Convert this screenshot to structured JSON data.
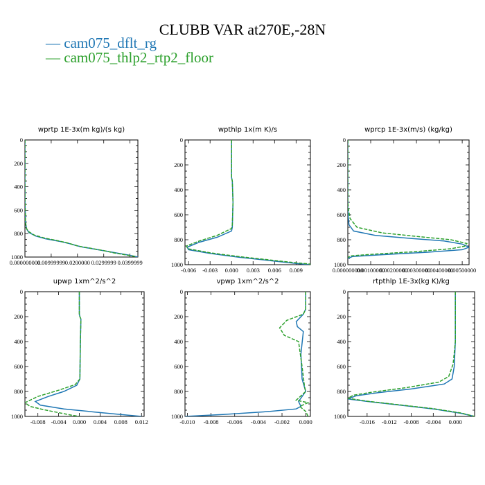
{
  "title": "CLUBB VAR at270E,-28N",
  "legend": [
    {
      "label": "cam075_dflt_rg",
      "color": "#1f77b4"
    },
    {
      "label": "cam075_thlp2_rtp2_floor",
      "color": "#2ca02c"
    }
  ],
  "legend_line_glyph": "—",
  "chart_data": [
    {
      "type": "line",
      "title": "wprtp  1E-3x(m kg)/(s kg)",
      "xlim": [
        0.0,
        0.043
      ],
      "ylim": [
        1000,
        0
      ],
      "grid": false,
      "xticks": [
        0.0,
        0.01,
        0.02,
        0.03,
        0.04
      ],
      "xticklabels": [
        "0.000000000",
        "0.00999999",
        "0.0200000",
        "0.0299999",
        "0.0399999"
      ],
      "yticks": [
        0,
        200,
        400,
        600,
        800,
        1000
      ],
      "yticklabels": [
        "0",
        "200",
        "400",
        "600",
        "800",
        "1000"
      ],
      "series": [
        {
          "name": "cam075_dflt_rg",
          "color": "#1f77b4",
          "dashed": false,
          "x": [
            0.0,
            0.0,
            0.0002,
            0.0006,
            0.0015,
            0.004,
            0.008,
            0.013,
            0.017,
            0.02,
            0.022,
            0.026,
            0.031,
            0.036,
            0.04,
            0.043
          ],
          "y": [
            0,
            500,
            700,
            760,
            790,
            820,
            845,
            865,
            885,
            905,
            915,
            930,
            950,
            970,
            985,
            1000
          ]
        },
        {
          "name": "cam075_thlp2_rtp2_floor",
          "color": "#2ca02c",
          "dashed": true,
          "x": [
            0.0,
            0.0,
            0.0002,
            0.0005,
            0.0012,
            0.0035,
            0.0075,
            0.012,
            0.016,
            0.019,
            0.021,
            0.025,
            0.03,
            0.034,
            0.038,
            0.042
          ],
          "y": [
            0,
            500,
            700,
            750,
            780,
            812,
            838,
            858,
            878,
            898,
            910,
            925,
            945,
            965,
            980,
            995
          ]
        }
      ]
    },
    {
      "type": "line",
      "title": "wpthlp  1x(m K)/s",
      "xlim": [
        -0.0065,
        0.011
      ],
      "ylim": [
        1000,
        0
      ],
      "grid": false,
      "xticks": [
        -0.006,
        -0.003,
        0.0,
        0.003,
        0.006,
        0.009
      ],
      "xticklabels": [
        "-0.006",
        "-0.003",
        "0.000",
        "0.003",
        "0.006",
        "0.009"
      ],
      "yticks": [
        0,
        200,
        400,
        600,
        800,
        1000
      ],
      "yticklabels": [
        "0",
        "200",
        "400",
        "600",
        "800",
        "1000"
      ],
      "series": [
        {
          "name": "cam075_dflt_rg",
          "color": "#1f77b4",
          "dashed": false,
          "x": [
            0.0,
            0.0,
            0.0001,
            0.0002,
            0.0001,
            0.0,
            -0.002,
            -0.0045,
            -0.0062,
            -0.006,
            -0.003,
            0.001,
            0.005,
            0.009,
            0.011
          ],
          "y": [
            0,
            300,
            330,
            500,
            700,
            730,
            780,
            820,
            860,
            880,
            910,
            940,
            965,
            990,
            1000
          ]
        },
        {
          "name": "cam075_thlp2_rtp2_floor",
          "color": "#2ca02c",
          "dashed": true,
          "x": [
            0.0,
            0.0,
            0.0001,
            0.0002,
            0.0001,
            0.0,
            -0.002,
            -0.0045,
            -0.0063,
            -0.0061,
            -0.003,
            0.001,
            0.005,
            0.009,
            0.011
          ],
          "y": [
            0,
            300,
            330,
            500,
            680,
            710,
            765,
            810,
            850,
            872,
            905,
            935,
            960,
            985,
            995
          ]
        }
      ]
    },
    {
      "type": "line",
      "title": "wprcp  1E-3x(m/s) (kg/kg)",
      "xlim": [
        0.0,
        5.3e-06
      ],
      "ylim": [
        1000,
        0
      ],
      "grid": false,
      "xticks": [
        0.0,
        1e-06,
        2e-06,
        3e-06,
        4e-06,
        5e-06
      ],
      "xticklabels": [
        "0.000000000",
        "0.00100000",
        "0.00200000",
        "0.00300000",
        "0.00400000",
        "0.00500000"
      ],
      "yticks": [
        0,
        200,
        400,
        600,
        800,
        1000
      ],
      "yticklabels": [
        "0",
        "200",
        "400",
        "600",
        "800",
        "1000"
      ],
      "series": [
        {
          "name": "cam075_dflt_rg",
          "color": "#1f77b4",
          "dashed": false,
          "x": [
            0.0,
            0.0,
            2e-08,
            5e-08,
            2.5e-07,
            1.2e-06,
            2.8e-06,
            4.2e-06,
            5e-06,
            5.3e-06,
            5e-06,
            3.5e-06,
            1.5e-06,
            2e-07,
            0.0
          ],
          "y": [
            0,
            550,
            620,
            680,
            730,
            765,
            790,
            810,
            835,
            860,
            880,
            900,
            920,
            935,
            950
          ]
        },
        {
          "name": "cam075_thlp2_rtp2_floor",
          "color": "#2ca02c",
          "dashed": true,
          "x": [
            0.0,
            0.0,
            4e-08,
            1e-07,
            4e-07,
            1.5e-06,
            3.1e-06,
            4.5e-06,
            5.2e-06,
            5.1e-06,
            4.5e-06,
            3e-06,
            1.2e-06,
            1e-07,
            0.0
          ],
          "y": [
            0,
            500,
            570,
            630,
            700,
            745,
            775,
            800,
            830,
            852,
            872,
            895,
            915,
            930,
            945
          ]
        }
      ]
    },
    {
      "type": "line",
      "title": "upwp  1xm^2/s^2",
      "xlim": [
        -0.0105,
        0.0125
      ],
      "ylim": [
        1000,
        0
      ],
      "grid": false,
      "xticks": [
        -0.008,
        -0.004,
        0.0,
        0.004,
        0.008,
        0.012
      ],
      "xticklabels": [
        "-0.008",
        "-0.004",
        "0.000",
        "0.004",
        "0.008",
        "0.012"
      ],
      "yticks": [
        0,
        200,
        400,
        600,
        800,
        1000
      ],
      "yticklabels": [
        "0",
        "200",
        "400",
        "600",
        "800",
        "1000"
      ],
      "series": [
        {
          "name": "cam075_dflt_rg",
          "color": "#1f77b4",
          "dashed": false,
          "x": [
            0.0,
            0.0,
            0.0001,
            0.0003,
            0.0002,
            0.0001,
            -0.0005,
            -0.003,
            -0.006,
            -0.0085,
            -0.0075,
            -0.003,
            0.003,
            0.008,
            0.012
          ],
          "y": [
            0,
            180,
            200,
            220,
            400,
            700,
            750,
            800,
            840,
            880,
            910,
            940,
            965,
            985,
            1000
          ]
        },
        {
          "name": "cam075_thlp2_rtp2_floor",
          "color": "#2ca02c",
          "dashed": true,
          "x": [
            0.0,
            0.0,
            0.0001,
            0.0003,
            0.0002,
            0.0001,
            -0.0008,
            -0.004,
            -0.008,
            -0.0105,
            -0.0095,
            -0.007,
            -0.004,
            -0.0015,
            0.0
          ],
          "y": [
            0,
            180,
            200,
            220,
            400,
            700,
            745,
            790,
            840,
            890,
            920,
            945,
            970,
            990,
            1000
          ]
        }
      ]
    },
    {
      "type": "line",
      "title": "vpwp  1xm^2/s^2",
      "xlim": [
        -0.0102,
        0.0004
      ],
      "ylim": [
        1000,
        0
      ],
      "grid": false,
      "xticks": [
        -0.01,
        -0.008,
        -0.006,
        -0.004,
        -0.002,
        0.0
      ],
      "xticklabels": [
        "-0.010",
        "-0.008",
        "-0.006",
        "-0.004",
        "-0.002",
        "0.000"
      ],
      "yticks": [
        0,
        200,
        400,
        600,
        800,
        1000
      ],
      "yticklabels": [
        "0",
        "200",
        "400",
        "600",
        "800",
        "1000"
      ],
      "series": [
        {
          "name": "cam075_dflt_rg",
          "color": "#1f77b4",
          "dashed": false,
          "x": [
            0.0,
            0.0,
            -0.0002,
            -0.0008,
            -0.0007,
            -0.0002,
            -0.0004,
            -0.0003,
            0.0,
            -0.0006,
            -0.0004,
            -0.0008,
            -0.003,
            -0.007,
            -0.0102
          ],
          "y": [
            0,
            140,
            180,
            240,
            280,
            320,
            500,
            700,
            800,
            880,
            920,
            940,
            960,
            985,
            1000
          ]
        },
        {
          "name": "cam075_thlp2_rtp2_floor",
          "color": "#2ca02c",
          "dashed": true,
          "x": [
            0.0,
            0.0,
            -0.0002,
            -0.0016,
            -0.0022,
            -0.0018,
            -0.0006,
            -0.0003,
            -0.0001,
            0.0,
            -0.0008,
            0.0002,
            -0.0005,
            0.0,
            0.0002
          ],
          "y": [
            0,
            140,
            180,
            230,
            290,
            350,
            400,
            600,
            760,
            800,
            870,
            890,
            920,
            960,
            1000
          ]
        }
      ]
    },
    {
      "type": "line",
      "title": "rtpthlp  1E-3x(kg K)/kg",
      "xlim": [
        -0.0195,
        0.0035
      ],
      "ylim": [
        1000,
        0
      ],
      "grid": false,
      "xticks": [
        -0.016,
        -0.012,
        -0.008,
        -0.004,
        0.0
      ],
      "xticklabels": [
        "-0.016",
        "-0.012",
        "-0.008",
        "-0.004",
        "0.000"
      ],
      "yticks": [
        0,
        200,
        400,
        600,
        800,
        1000
      ],
      "yticklabels": [
        "0",
        "200",
        "400",
        "600",
        "800",
        "1000"
      ],
      "series": [
        {
          "name": "cam075_dflt_rg",
          "color": "#1f77b4",
          "dashed": false,
          "x": [
            0.0,
            0.0,
            -0.0002,
            -0.0006,
            -0.002,
            -0.008,
            -0.014,
            -0.018,
            -0.0195,
            -0.016,
            -0.01,
            -0.004,
            0.001,
            0.0035
          ],
          "y": [
            0,
            400,
            600,
            700,
            740,
            780,
            810,
            835,
            860,
            880,
            910,
            940,
            975,
            1000
          ]
        },
        {
          "name": "cam075_thlp2_rtp2_floor",
          "color": "#2ca02c",
          "dashed": true,
          "x": [
            0.0,
            0.0,
            -0.0004,
            -0.0012,
            -0.003,
            -0.009,
            -0.015,
            -0.0185,
            -0.0195,
            -0.016,
            -0.01,
            -0.004,
            0.001,
            0.0035
          ],
          "y": [
            0,
            400,
            580,
            680,
            725,
            770,
            805,
            830,
            855,
            878,
            908,
            938,
            972,
            1000
          ]
        }
      ]
    }
  ]
}
